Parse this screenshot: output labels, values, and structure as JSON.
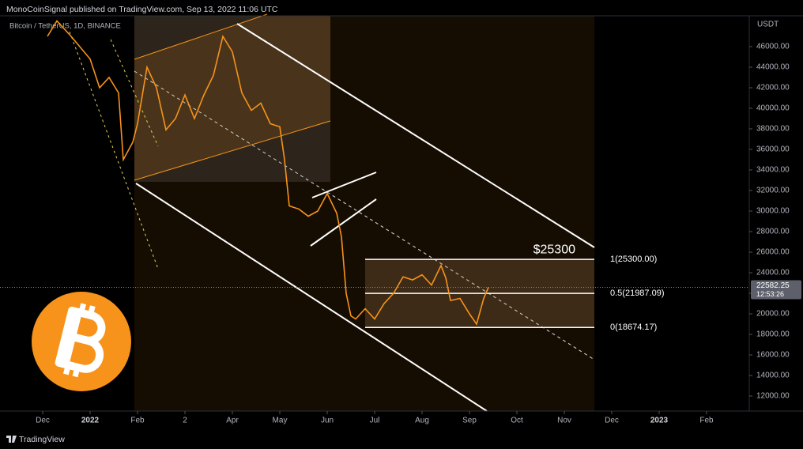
{
  "header": {
    "publisher": "MonoCoinSignal published on TradingView.com, Sep 13, 2022 11:06 UTC",
    "footer": "TradingView"
  },
  "chart_data": {
    "type": "line",
    "symbol": "Bitcoin / TetherUS, 1D, BINANCE",
    "y_axis_label": "USDT",
    "color": "#f7931a",
    "grid": false,
    "x": [
      0.1,
      0.3,
      0.6,
      1.0,
      1.2,
      1.4,
      1.6,
      1.7,
      1.9,
      2.0,
      2.2,
      2.4,
      2.6,
      2.8,
      3.0,
      3.2,
      3.4,
      3.6,
      3.8,
      4.0,
      4.2,
      4.4,
      4.6,
      4.8,
      5.0,
      5.1,
      5.2,
      5.4,
      5.6,
      5.8,
      6.0,
      6.2,
      6.3,
      6.4,
      6.5,
      6.6,
      6.8,
      7.0,
      7.2,
      7.4,
      7.6,
      7.8,
      8.0,
      8.2,
      8.4,
      8.5,
      8.6,
      8.8,
      9.0,
      9.15,
      9.3,
      9.4
    ],
    "values": [
      47000,
      48500,
      47000,
      44800,
      42000,
      43000,
      41500,
      35000,
      36700,
      38500,
      44000,
      42000,
      37900,
      39000,
      41300,
      39000,
      41300,
      43200,
      47000,
      45500,
      41500,
      39800,
      40500,
      38500,
      38200,
      35000,
      30500,
      30200,
      29500,
      30000,
      31700,
      29800,
      27500,
      22000,
      19800,
      19500,
      20500,
      19500,
      21000,
      22000,
      23600,
      23300,
      23800,
      22800,
      24700,
      23500,
      21300,
      21500,
      20000,
      19000,
      21500,
      22582.25
    ],
    "last_price": 22582.25,
    "countdown": "12:53:26",
    "xlim": [
      -0.9,
      14.9
    ],
    "xticks": [
      {
        "value": 0,
        "label": "Dec"
      },
      {
        "value": 1,
        "label": "2022"
      },
      {
        "value": 2,
        "label": "Feb"
      },
      {
        "value": 3,
        "label": "2"
      },
      {
        "value": 4,
        "label": "Apr"
      },
      {
        "value": 5,
        "label": "May"
      },
      {
        "value": 6,
        "label": "Jun"
      },
      {
        "value": 7,
        "label": "Jul"
      },
      {
        "value": 8,
        "label": "Aug"
      },
      {
        "value": 9,
        "label": "Sep"
      },
      {
        "value": 10,
        "label": "Oct"
      },
      {
        "value": 11,
        "label": "Nov"
      },
      {
        "value": 12,
        "label": "Dec"
      },
      {
        "value": 13,
        "label": "2023"
      },
      {
        "value": 14,
        "label": "Feb"
      }
    ],
    "ylim": [
      10540,
      49000
    ],
    "yticks": [
      {
        "value": 12000,
        "label": "12000.00"
      },
      {
        "value": 14000,
        "label": "14000.00"
      },
      {
        "value": 16000,
        "label": "16000.00"
      },
      {
        "value": 18000,
        "label": "18000.00"
      },
      {
        "value": 20000,
        "label": "20000.00"
      },
      {
        "value": 22000,
        "label": "22000.00"
      },
      {
        "value": 24000,
        "label": "24000.00"
      },
      {
        "value": 26000,
        "label": "26000.00"
      },
      {
        "value": 28000,
        "label": "28000.00"
      },
      {
        "value": 30000,
        "label": "30000.00"
      },
      {
        "value": 32000,
        "label": "32000.00"
      },
      {
        "value": 34000,
        "label": "34000.00"
      },
      {
        "value": 36000,
        "label": "36000.00"
      },
      {
        "value": 38000,
        "label": "38000.00"
      },
      {
        "value": 40000,
        "label": "40000.00"
      },
      {
        "value": 42000,
        "label": "42000.00"
      },
      {
        "value": 44000,
        "label": "44000.00"
      },
      {
        "value": 46000,
        "label": "46000.00"
      }
    ],
    "target": {
      "value": 25300,
      "label": "$25300"
    },
    "fib_levels": {
      "values": [
        25300,
        21987.09,
        18674.17
      ],
      "value_labels": [
        "1(25300.00)",
        "0.5(21987.09)",
        "0(18674.17)"
      ]
    }
  }
}
